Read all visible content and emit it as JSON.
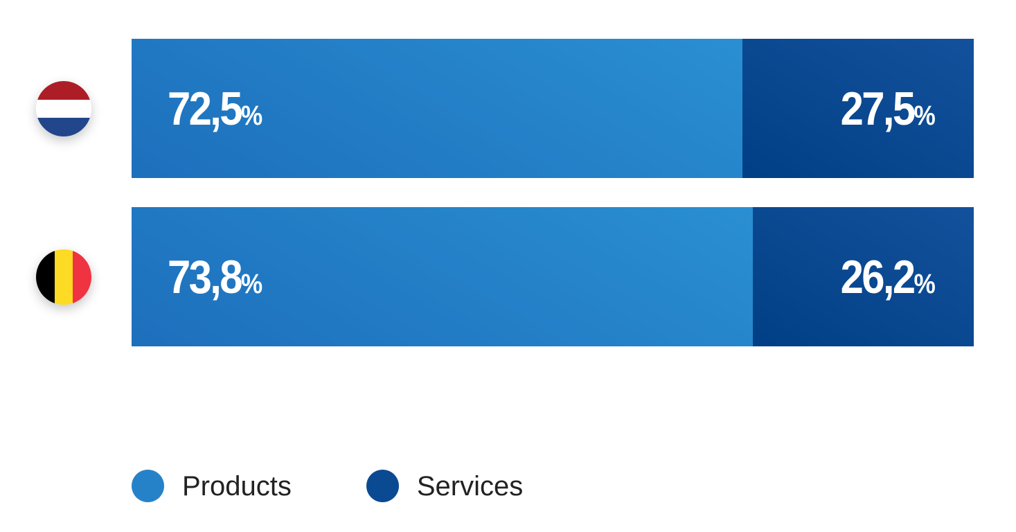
{
  "chart_data": {
    "type": "bar",
    "orientation": "horizontal",
    "stacked": true,
    "categories": [
      "Netherlands",
      "Belgium"
    ],
    "category_icons": [
      "netherlands-flag-icon",
      "belgium-flag-icon"
    ],
    "series": [
      {
        "name": "Products",
        "values": [
          72.5,
          73.8
        ],
        "labels": [
          "72,5",
          "73,8"
        ],
        "color": "#2682c8"
      },
      {
        "name": "Services",
        "values": [
          27.5,
          26.2
        ],
        "labels": [
          "27,5",
          "26,2"
        ],
        "color": "#0a4a92"
      }
    ],
    "unit": "%",
    "xlim": [
      0,
      100
    ],
    "grid": false,
    "legend_position": "bottom-left"
  }
}
